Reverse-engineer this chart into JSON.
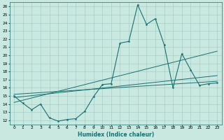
{
  "xlabel": "Humidex (Indice chaleur)",
  "bg_color": "#c8e8e0",
  "grid_color": "#a0c8c8",
  "line_color": "#1a7070",
  "xlim": [
    -0.5,
    23.5
  ],
  "ylim": [
    11.5,
    26.5
  ],
  "xticks": [
    0,
    1,
    2,
    3,
    4,
    5,
    6,
    7,
    8,
    9,
    10,
    11,
    12,
    13,
    14,
    15,
    16,
    17,
    18,
    19,
    20,
    21,
    22,
    23
  ],
  "yticks": [
    12,
    13,
    14,
    15,
    16,
    17,
    18,
    19,
    20,
    21,
    22,
    23,
    24,
    25,
    26
  ],
  "main_curve_x": [
    0,
    1,
    2,
    3,
    4,
    5,
    6,
    7,
    8,
    9,
    10,
    11,
    12,
    13,
    14,
    15,
    16,
    17,
    18,
    19,
    20,
    21,
    22,
    23
  ],
  "main_curve_y": [
    15.0,
    14.1,
    13.3,
    14.0,
    12.3,
    11.9,
    12.1,
    12.2,
    13.1,
    14.9,
    16.4,
    16.5,
    21.5,
    21.7,
    26.2,
    23.8,
    24.5,
    21.3,
    16.0,
    20.2,
    18.2,
    16.3,
    16.5,
    16.6
  ],
  "reg_line1_x": [
    0,
    23
  ],
  "reg_line1_y": [
    14.2,
    20.5
  ],
  "reg_line2_x": [
    0,
    23
  ],
  "reg_line2_y": [
    14.8,
    17.5
  ],
  "reg_line3_x": [
    0,
    23
  ],
  "reg_line3_y": [
    15.2,
    16.8
  ]
}
